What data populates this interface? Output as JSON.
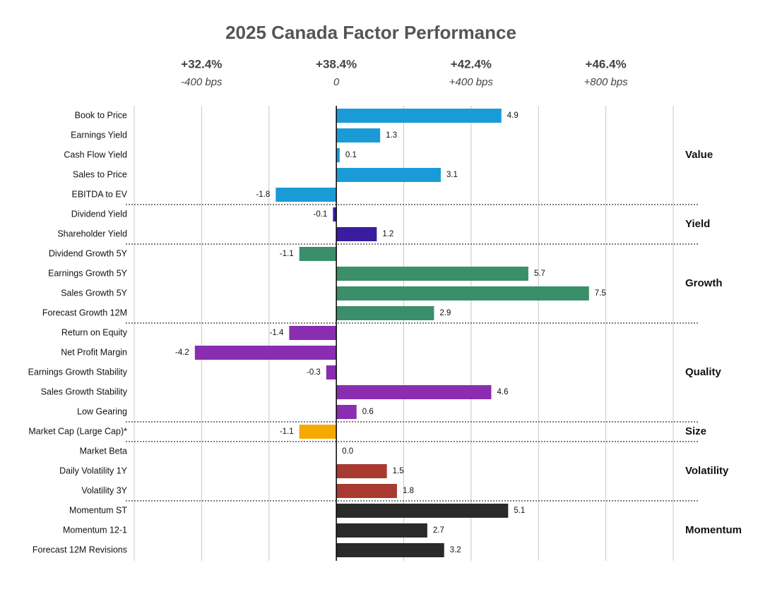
{
  "chart_data": {
    "type": "bar",
    "orientation": "horizontal",
    "title": "2025 Canada Factor Performance",
    "xlim": [
      -6,
      10
    ],
    "xgrid": [
      -6,
      -4,
      -2,
      0,
      2,
      4,
      6,
      8,
      10
    ],
    "xticks": [
      {
        "value": -4,
        "label": "-400 bps"
      },
      0,
      {
        "value": 4,
        "label": "+400 bps"
      },
      {
        "value": 8,
        "label": "+800 bps"
      }
    ],
    "x2ticks": [
      {
        "value": -4,
        "label": "+32.4%"
      },
      {
        "value": 0,
        "label": "+38.4%"
      },
      {
        "value": 4,
        "label": "+42.4%"
      },
      {
        "value": 8,
        "label": "+46.4%"
      }
    ],
    "groups": [
      {
        "name": "Value",
        "color": "#1a9bd7",
        "categories": [
          "Book to Price",
          "Earnings Yield",
          "Cash Flow Yield",
          "Sales to Price",
          "EBITDA to EV"
        ],
        "values": [
          4.9,
          1.3,
          0.1,
          3.1,
          -1.8
        ],
        "value_labels": [
          "4.9",
          "1.3",
          "0.1",
          "3.1",
          "-1.8"
        ]
      },
      {
        "name": "Yield",
        "color": "#3a1d9e",
        "categories": [
          "Dividend Yield",
          "Shareholder Yield"
        ],
        "values": [
          -0.1,
          1.2
        ],
        "value_labels": [
          "-0.1",
          "1.2"
        ]
      },
      {
        "name": "Growth",
        "color": "#3a8f6a",
        "categories": [
          "Dividend Growth 5Y",
          "Earnings Growth 5Y",
          "Sales Growth 5Y",
          "Forecast Growth 12M"
        ],
        "values": [
          -1.1,
          5.7,
          7.5,
          2.9
        ],
        "value_labels": [
          "-1.1",
          "5.7",
          "7.5",
          "2.9"
        ]
      },
      {
        "name": "Quality",
        "color": "#8a2db0",
        "categories": [
          "Return on Equity",
          "Net Profit Margin",
          "Earnings Growth Stability",
          "Sales Growth Stability",
          "Low Gearing"
        ],
        "values": [
          -1.4,
          -4.2,
          -0.3,
          4.6,
          0.6
        ],
        "value_labels": [
          "-1.4",
          "-4.2",
          "-0.3",
          "4.6",
          "0.6"
        ]
      },
      {
        "name": "Size",
        "color": "#f5a800",
        "categories": [
          "Market Cap (Large Cap)*"
        ],
        "values": [
          -1.1
        ],
        "value_labels": [
          "-1.1"
        ]
      },
      {
        "name": "Volatility",
        "color": "#a83a32",
        "categories": [
          "Market Beta",
          "Daily Volatility 1Y",
          "Volatility 3Y"
        ],
        "values": [
          0.0,
          1.5,
          1.8
        ],
        "value_labels": [
          "0.0",
          "1.5",
          "1.8"
        ]
      },
      {
        "name": "Momentum",
        "color": "#2a2a2a",
        "categories": [
          "Momentum ST",
          "Momentum 12-1",
          "Forecast 12M Revisions"
        ],
        "values": [
          5.1,
          2.7,
          3.2
        ],
        "value_labels": [
          "5.1",
          "2.7",
          "3.2"
        ]
      }
    ]
  }
}
